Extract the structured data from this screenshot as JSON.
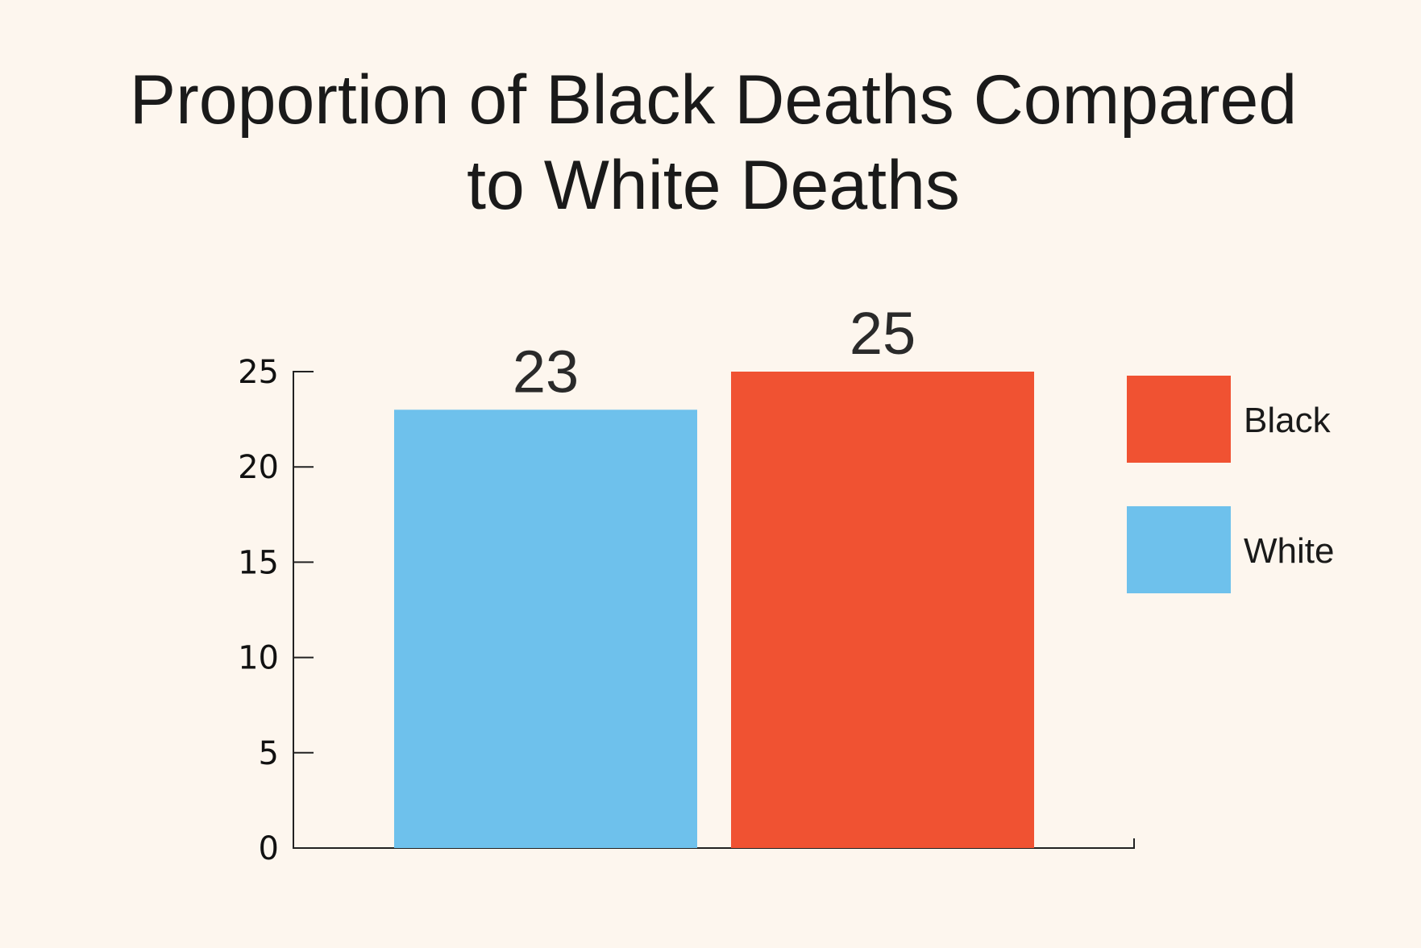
{
  "chart_data": {
    "type": "bar",
    "title_lines": [
      "Proportion of Black Deaths Compared",
      "to White Deaths"
    ],
    "categories": [
      "White",
      "Black"
    ],
    "values": [
      23,
      25
    ],
    "data_labels": [
      "23",
      "25"
    ],
    "bar_colors": [
      "#6ec1ec",
      "#f05232"
    ],
    "ylim": [
      0,
      25
    ],
    "yticks": [
      0,
      5,
      10,
      15,
      20,
      25
    ],
    "ytick_labels": [
      "0",
      "5",
      "10",
      "15",
      "20",
      "25"
    ],
    "xlabel": "",
    "ylabel": "",
    "grid": false,
    "legend_position": "right",
    "legend": [
      {
        "label": "Black",
        "color": "#f05232"
      },
      {
        "label": "White",
        "color": "#6ec1ec"
      }
    ]
  },
  "colors": {
    "background": "#fdf6ee",
    "text": "#1a1a1a",
    "axis": "#222222"
  }
}
